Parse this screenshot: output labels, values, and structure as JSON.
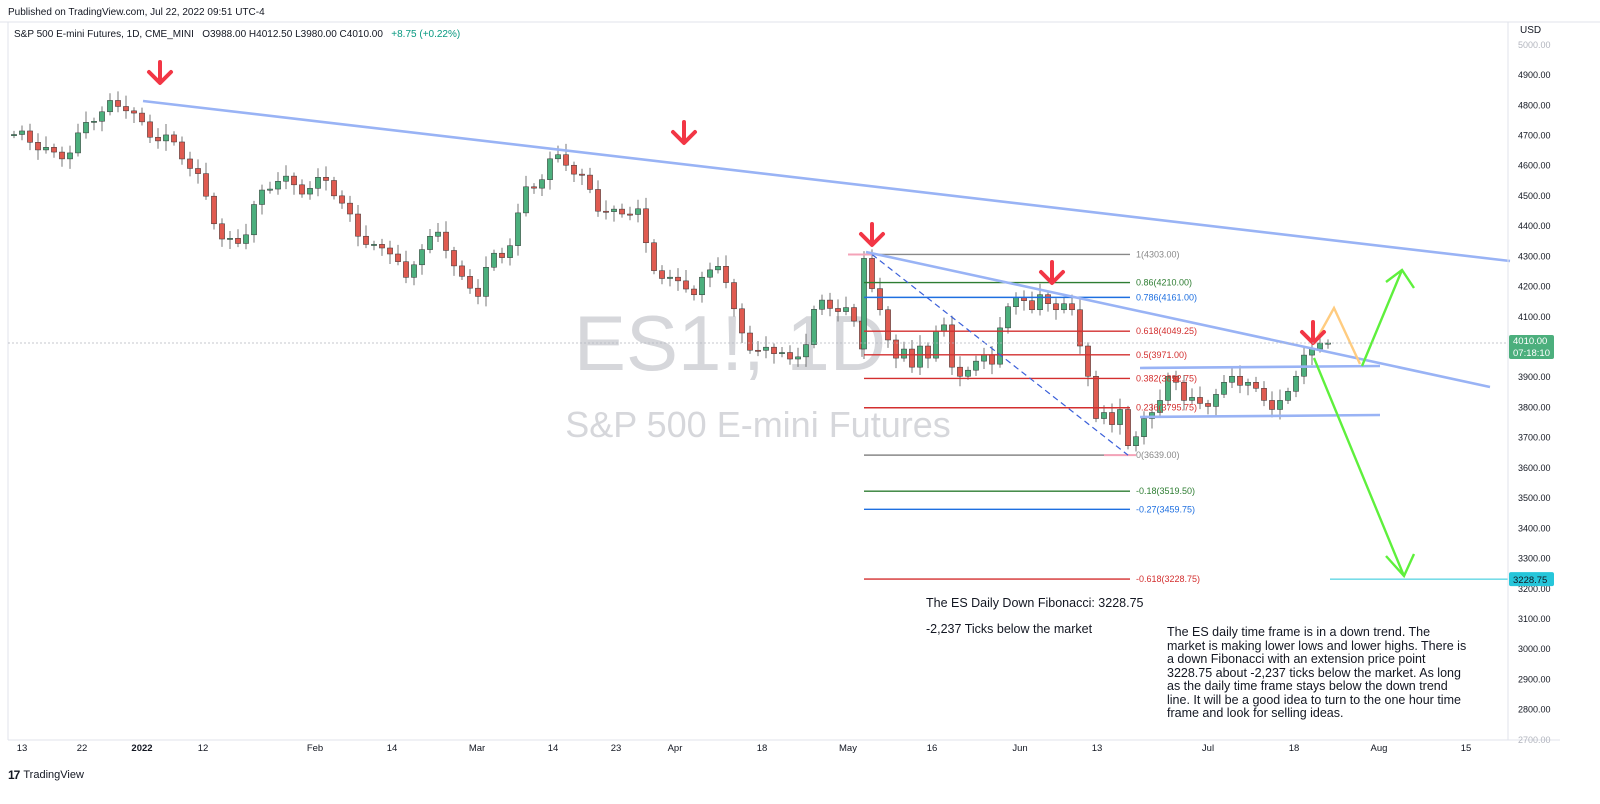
{
  "header": {
    "published": "Published on TradingView.com, Jul 22, 2022 09:51 UTC-4",
    "symbol_line": "S&P 500 E-mini Futures, 1D, CME_MINI",
    "ohlc": "O3988.00  H4012.50  L3980.00  C4010.00",
    "change": "+8.75 (+0.22%)"
  },
  "watermark": {
    "ticker": "ES1!, 1D",
    "name": "S&P 500 E-mini Futures"
  },
  "axis": {
    "currency": "USD",
    "y_ticks": [
      5000,
      4900,
      4800,
      4700,
      4600,
      4500,
      4400,
      4300,
      4200,
      4100,
      4000,
      3900,
      3800,
      3700,
      3600,
      3500,
      3400,
      3300,
      3200,
      3100,
      3000,
      2900,
      2800,
      2700
    ],
    "x_ticks": [
      "13",
      "22",
      "2022",
      "12",
      "Feb",
      "14",
      "Mar",
      "14",
      "23",
      "Apr",
      "18",
      "May",
      "16",
      "Jun",
      "13",
      "Jul",
      "18",
      "Aug",
      "15"
    ],
    "last_price": "4010.00",
    "countdown": "07:18:10",
    "target_price": "3228.75"
  },
  "colors": {
    "up": "#4caf7d",
    "down": "#e05a50",
    "trend": "#99b3f5",
    "fib_red": "#d32f2f",
    "fib_green": "#2e7d32",
    "fib_blue": "#1e6fe0",
    "fib_gray": "#888888",
    "arrow": "#f23645",
    "green_path": "#5ef03c",
    "orange_path": "#ffcc80",
    "teal": "#26c6da"
  },
  "chart_data": {
    "type": "candlestick",
    "series_count": 145,
    "ylim": [
      2700,
      5000
    ],
    "fib_levels": [
      {
        "label": "1(4303.00)",
        "ratio": 1,
        "price": 4303.0,
        "color": "gray"
      },
      {
        "label": "0.86(4210.00)",
        "ratio": 0.86,
        "price": 4210.0,
        "color": "green"
      },
      {
        "label": "0.786(4161.00)",
        "ratio": 0.786,
        "price": 4161.0,
        "color": "blue"
      },
      {
        "label": "0.618(4049.25)",
        "ratio": 0.618,
        "price": 4049.25,
        "color": "red"
      },
      {
        "label": "0.5(3971.00)",
        "ratio": 0.5,
        "price": 3971.0,
        "color": "red"
      },
      {
        "label": "0.382(3892.75)",
        "ratio": 0.382,
        "price": 3892.75,
        "color": "red"
      },
      {
        "label": "0.236(3795.75)",
        "ratio": 0.236,
        "price": 3795.75,
        "color": "red"
      },
      {
        "label": "0(3639.00)",
        "ratio": 0,
        "price": 3639.0,
        "color": "gray"
      },
      {
        "label": "-0.18(3519.50)",
        "ratio": -0.18,
        "price": 3519.5,
        "color": "green"
      },
      {
        "label": "-0.27(3459.75)",
        "ratio": -0.27,
        "price": 3459.75,
        "color": "blue"
      },
      {
        "label": "-0.618(3228.75)",
        "ratio": -0.618,
        "price": 3228.75,
        "color": "red"
      }
    ]
  },
  "annotations": {
    "fib_title": "The ES Daily Down Fibonacci: 3228.75",
    "ticks_below": "-2,237 Ticks below the market",
    "commentary": "The ES daily time frame is in a down trend. The market is making lower lows and lower highs. There is a down Fibonacci with an extension price point 3228.75 about -2,237 ticks below the market. As long as the daily time frame stays below the down trend line. It will be a good idea to turn to the one hour time frame and look for selling ideas."
  },
  "footer": {
    "brand": "TradingView"
  }
}
